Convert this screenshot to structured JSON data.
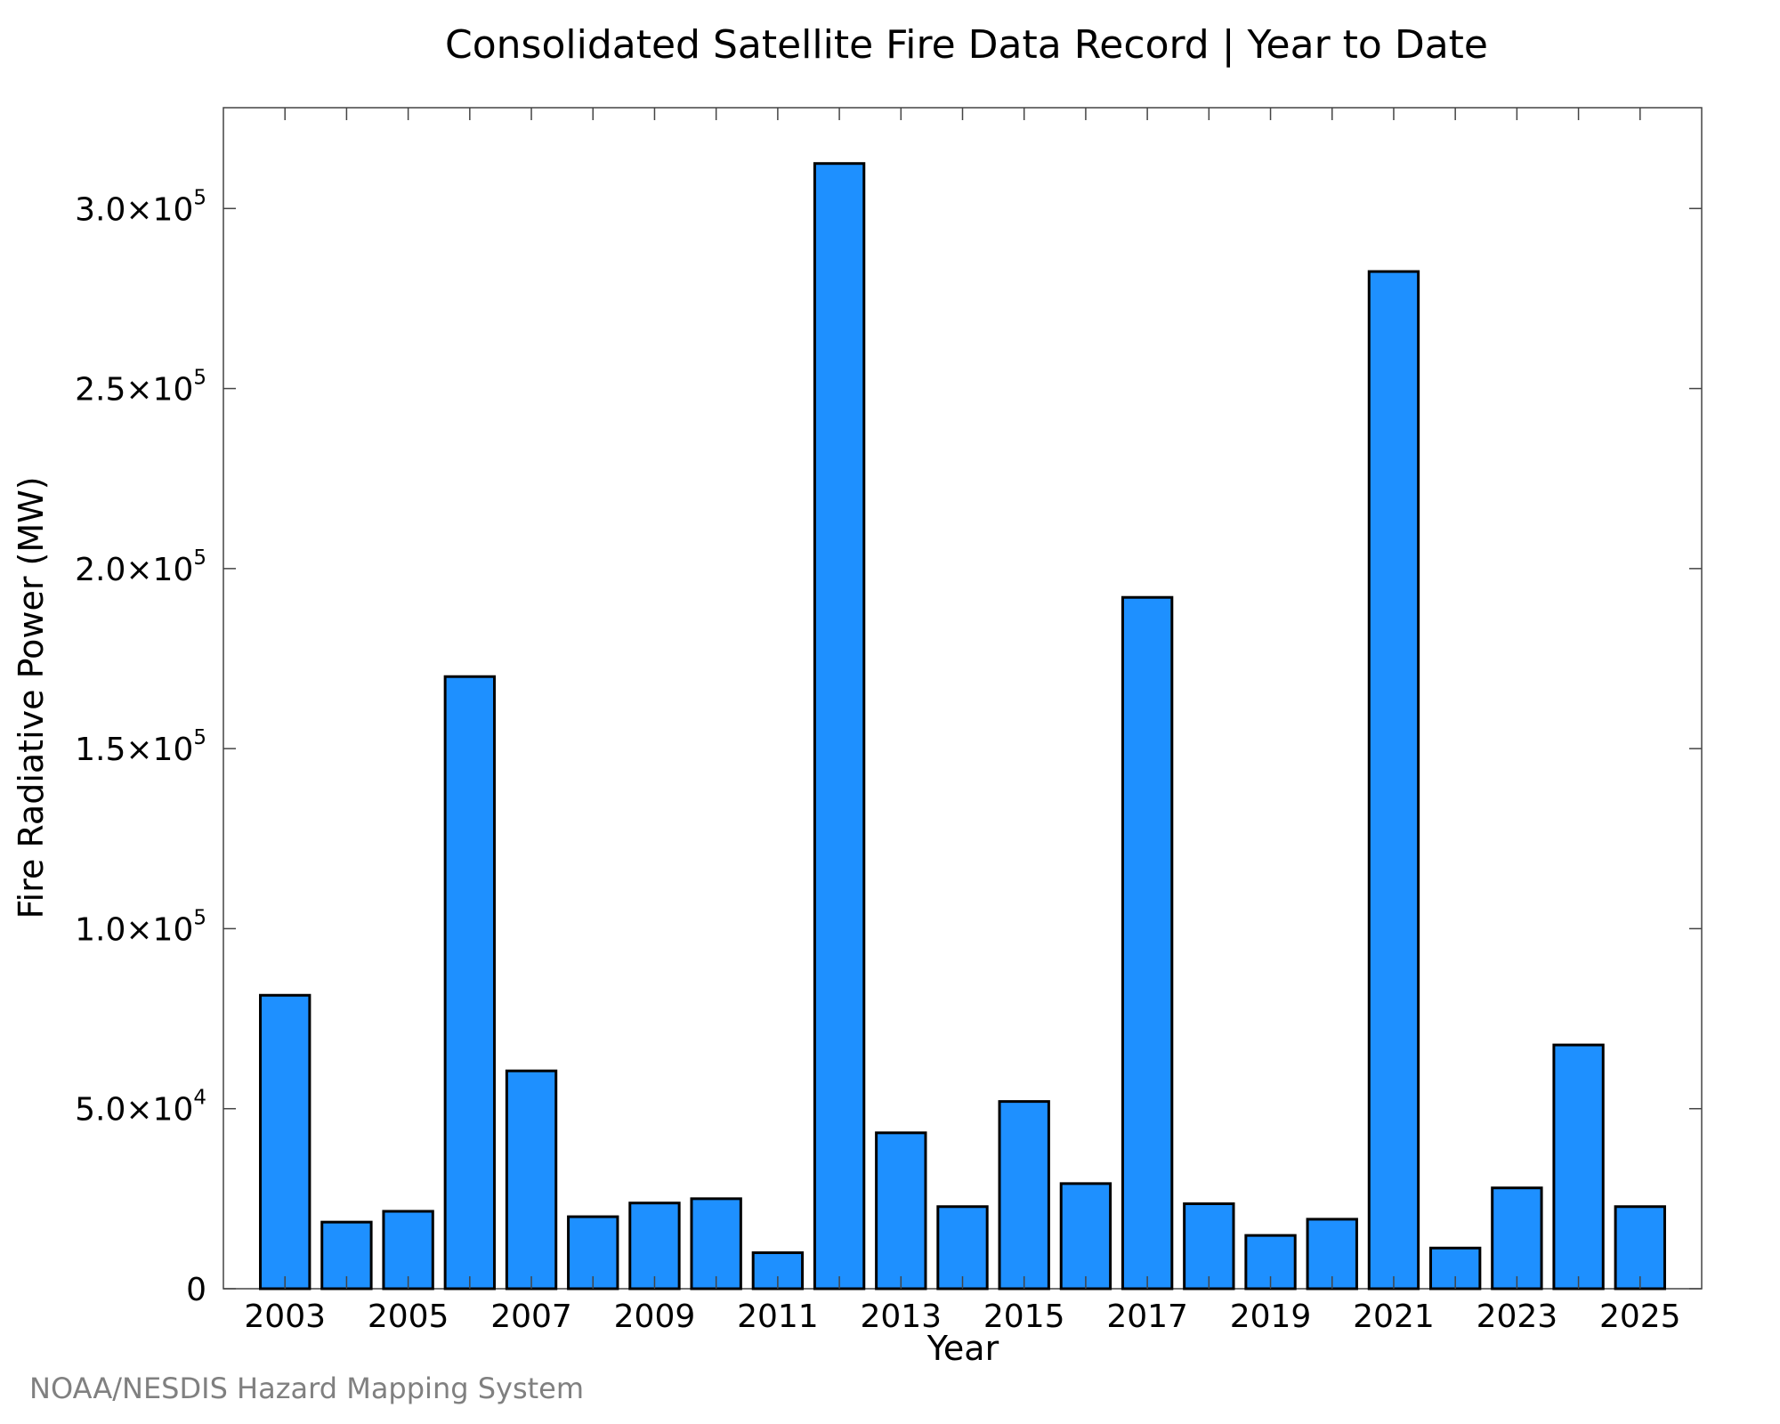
{
  "chart_data": {
    "type": "bar",
    "title": "Consolidated Satellite Fire Data Record | Year to Date",
    "xlabel": "Year",
    "ylabel": "Fire Radiative Power (MW)",
    "categories": [
      "2003",
      "2004",
      "2005",
      "2006",
      "2007",
      "2008",
      "2009",
      "2010",
      "2011",
      "2012",
      "2013",
      "2014",
      "2015",
      "2016",
      "2017",
      "2018",
      "2019",
      "2020",
      "2021",
      "2022",
      "2023",
      "2024",
      "2025"
    ],
    "values": [
      81500,
      18500,
      21500,
      170000,
      60500,
      20000,
      23800,
      25000,
      10000,
      312500,
      43300,
      22800,
      52000,
      29200,
      192000,
      23600,
      14800,
      19300,
      282500,
      11300,
      28000,
      67700,
      22800
    ],
    "xticks": [
      "2003",
      "2005",
      "2007",
      "2009",
      "2011",
      "2013",
      "2015",
      "2017",
      "2019",
      "2021",
      "2023",
      "2025"
    ],
    "yticks": [
      {
        "value": 0,
        "mantissa": "0",
        "exp": ""
      },
      {
        "value": 50000,
        "mantissa": "5.0×10",
        "exp": "4"
      },
      {
        "value": 100000,
        "mantissa": "1.0×10",
        "exp": "5"
      },
      {
        "value": 150000,
        "mantissa": "1.5×10",
        "exp": "5"
      },
      {
        "value": 200000,
        "mantissa": "2.0×10",
        "exp": "5"
      },
      {
        "value": 250000,
        "mantissa": "2.5×10",
        "exp": "5"
      },
      {
        "value": 300000,
        "mantissa": "3.0×10",
        "exp": "5"
      }
    ],
    "ylim": [
      0,
      328000
    ],
    "xlim": [
      2002,
      2026
    ],
    "bar_color": "#1e90ff",
    "grid": false,
    "legend": "none"
  },
  "footer": "NOAA/NESDIS Hazard Mapping System"
}
